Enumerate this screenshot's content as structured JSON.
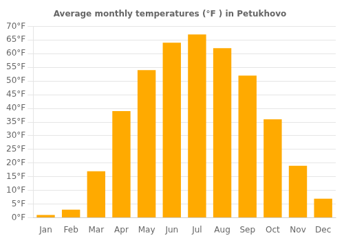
{
  "chart_data": {
    "type": "bar",
    "title": "Average monthly temperatures (°F ) in Petukhovo",
    "categories": [
      "Jan",
      "Feb",
      "Mar",
      "Apr",
      "May",
      "Jun",
      "Jul",
      "Aug",
      "Sep",
      "Oct",
      "Nov",
      "Dec"
    ],
    "values": [
      1,
      3,
      17,
      39,
      54,
      64,
      67,
      62,
      52,
      36,
      19,
      7
    ],
    "color": "#FFAA00",
    "ylim": [
      0,
      70
    ],
    "yticks": [
      {
        "value": 0,
        "label": "0°F"
      },
      {
        "value": 5,
        "label": "5°F"
      },
      {
        "value": 10,
        "label": "10°F"
      },
      {
        "value": 15,
        "label": "15°F"
      },
      {
        "value": 20,
        "label": "20°F"
      },
      {
        "value": 25,
        "label": "25°F"
      },
      {
        "value": 30,
        "label": "30°F"
      },
      {
        "value": 35,
        "label": "35°F"
      },
      {
        "value": 40,
        "label": "40°F"
      },
      {
        "value": 45,
        "label": "45°F"
      },
      {
        "value": 50,
        "label": "50°F"
      },
      {
        "value": 55,
        "label": "55°F"
      },
      {
        "value": 60,
        "label": "60°F"
      },
      {
        "value": 65,
        "label": "65°F"
      },
      {
        "value": 70,
        "label": "70°F"
      }
    ],
    "grid": true
  }
}
